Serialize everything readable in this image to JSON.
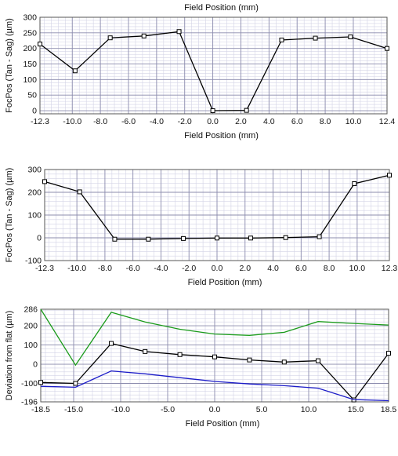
{
  "chart_data": [
    {
      "type": "line",
      "top_label": "Field Position (mm)",
      "xlabel": "Field Position (mm)",
      "ylabel": "FocPos (Tan - Sag) (µm)",
      "xlim": [
        -12.3,
        12.4
      ],
      "ylim": [
        -10,
        300
      ],
      "grid": true,
      "x_ticks": [
        {
          "v": -12.3,
          "t": "-12.3"
        },
        {
          "v": -10,
          "t": "-10.0"
        },
        {
          "v": -8,
          "t": "-8.0"
        },
        {
          "v": -6,
          "t": "-6.0"
        },
        {
          "v": -4,
          "t": "-4.0"
        },
        {
          "v": -2,
          "t": "-2.0"
        },
        {
          "v": 0,
          "t": "0.0"
        },
        {
          "v": 2,
          "t": "2.0"
        },
        {
          "v": 4,
          "t": "4.0"
        },
        {
          "v": 6,
          "t": "6.0"
        },
        {
          "v": 8,
          "t": "8.0"
        },
        {
          "v": 10,
          "t": "10.0"
        },
        {
          "v": 12.4,
          "t": "12.4"
        }
      ],
      "y_ticks": [
        {
          "v": 300,
          "t": "300"
        },
        {
          "v": 250,
          "t": "250"
        },
        {
          "v": 200,
          "t": "200"
        },
        {
          "v": 150,
          "t": "150"
        },
        {
          "v": 100,
          "t": "100"
        },
        {
          "v": 50,
          "t": "50"
        },
        {
          "v": 0,
          "t": "0"
        }
      ],
      "series": [
        {
          "color": "#000000",
          "markers": true,
          "x": [
            -12.3,
            -9.8,
            -7.3,
            -4.9,
            -2.4,
            0.0,
            2.4,
            4.9,
            7.3,
            9.8,
            12.4
          ],
          "y": [
            214,
            128,
            234,
            240,
            254,
            0,
            1,
            227,
            233,
            237,
            200
          ]
        }
      ]
    },
    {
      "type": "line",
      "xlabel": "Field Position (mm)",
      "ylabel": "FocPos (Tan - Sag) (µm)",
      "xlim": [
        -12.3,
        12.3
      ],
      "ylim": [
        -100,
        300
      ],
      "grid": true,
      "x_ticks": [
        {
          "v": -12.3,
          "t": "-12.3"
        },
        {
          "v": -10,
          "t": "-10.0"
        },
        {
          "v": -8,
          "t": "-8.0"
        },
        {
          "v": -6,
          "t": "-6.0"
        },
        {
          "v": -4,
          "t": "-4.0"
        },
        {
          "v": -2,
          "t": "-2.0"
        },
        {
          "v": 0,
          "t": "0.0"
        },
        {
          "v": 2,
          "t": "2.0"
        },
        {
          "v": 4,
          "t": "4.0"
        },
        {
          "v": 6,
          "t": "6.0"
        },
        {
          "v": 8,
          "t": "8.0"
        },
        {
          "v": 10,
          "t": "10.0"
        },
        {
          "v": 12.3,
          "t": "12.3"
        }
      ],
      "y_ticks": [
        {
          "v": 300,
          "t": "300"
        },
        {
          "v": 200,
          "t": "200"
        },
        {
          "v": 100,
          "t": "100"
        },
        {
          "v": 0,
          "t": "0"
        },
        {
          "v": -100,
          "t": "-100"
        }
      ],
      "series": [
        {
          "color": "#000000",
          "markers": true,
          "x": [
            -12.3,
            -9.8,
            -7.3,
            -4.9,
            -2.4,
            0.0,
            2.4,
            4.9,
            7.3,
            9.8,
            12.3
          ],
          "y": [
            247,
            202,
            -6,
            -6,
            -3,
            -1,
            -1,
            1,
            5,
            238,
            275
          ]
        }
      ]
    },
    {
      "type": "line",
      "xlabel": "Field Position (mm)",
      "ylabel": "Deviation from flat (µm)",
      "xlim": [
        -18.5,
        18.5
      ],
      "ylim": [
        -196,
        286
      ],
      "grid": true,
      "x_ticks": [
        {
          "v": -18.5,
          "t": "-18.5"
        },
        {
          "v": -15,
          "t": "-15.0"
        },
        {
          "v": -10,
          "t": "-10.0"
        },
        {
          "v": -5,
          "t": "-5.0"
        },
        {
          "v": 0,
          "t": "0.0"
        },
        {
          "v": 5,
          "t": "5.0"
        },
        {
          "v": 10,
          "t": "10.0"
        },
        {
          "v": 15,
          "t": "15.0"
        },
        {
          "v": 18.5,
          "t": "18.5"
        }
      ],
      "y_ticks": [
        {
          "v": 286,
          "t": "286"
        },
        {
          "v": 200,
          "t": "200"
        },
        {
          "v": 100,
          "t": "100"
        },
        {
          "v": 0,
          "t": "0"
        },
        {
          "v": -100,
          "t": "-100"
        },
        {
          "v": -196,
          "t": "-196"
        }
      ],
      "series": [
        {
          "color": "#1a9b1a",
          "markers": false,
          "x": [
            -18.5,
            -14.8,
            -11.0,
            -7.4,
            -3.7,
            0.0,
            3.7,
            7.4,
            11.0,
            14.8,
            18.5
          ],
          "y": [
            286,
            -5,
            270,
            220,
            182,
            157,
            150,
            166,
            222,
            212,
            204
          ]
        },
        {
          "color": "#000000",
          "markers": true,
          "x": [
            -18.5,
            -14.8,
            -11.0,
            -7.4,
            -3.7,
            0.0,
            3.7,
            7.4,
            11.0,
            14.8,
            18.5
          ],
          "y": [
            -95,
            -100,
            108,
            66,
            50,
            38,
            22,
            11,
            18,
            -186,
            57
          ]
        },
        {
          "color": "#1c1cc8",
          "markers": false,
          "x": [
            -18.5,
            -14.8,
            -11.0,
            -7.4,
            -3.7,
            0.0,
            3.7,
            7.4,
            11.0,
            14.8,
            18.5
          ],
          "y": [
            -115,
            -120,
            -35,
            -50,
            -70,
            -90,
            -103,
            -112,
            -125,
            -184,
            -190
          ]
        }
      ]
    }
  ]
}
